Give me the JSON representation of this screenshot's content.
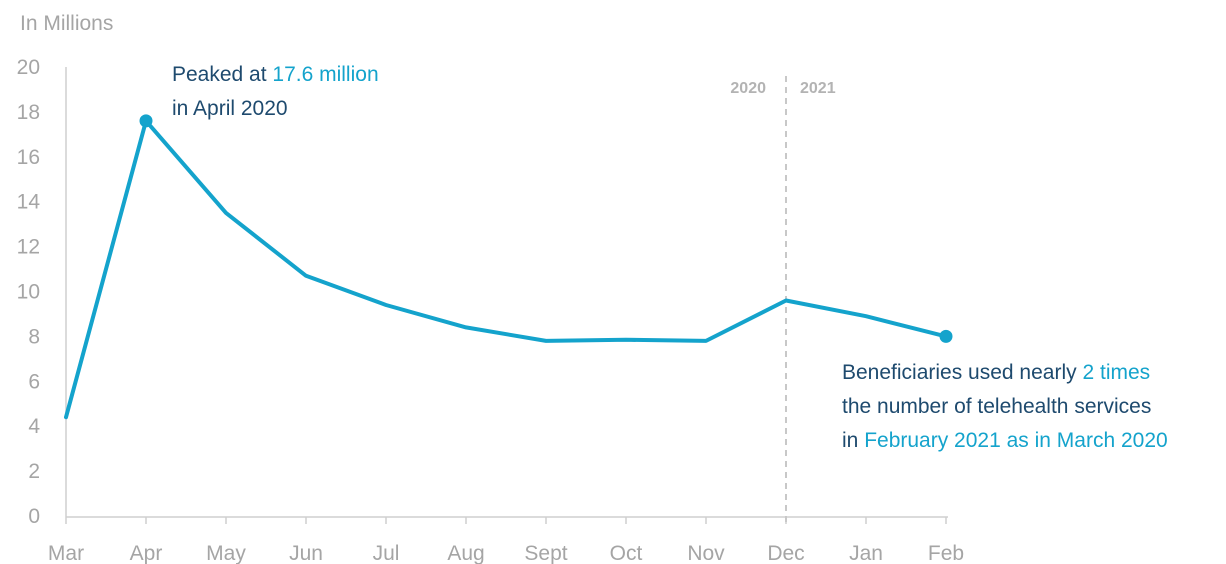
{
  "chart_data": {
    "type": "line",
    "unit_label": "In Millions",
    "categories": [
      "Mar",
      "Apr",
      "May",
      "Jun",
      "Jul",
      "Aug",
      "Sept",
      "Oct",
      "Nov",
      "Dec",
      "Jan",
      "Feb"
    ],
    "series": [
      {
        "values": [
          4.4,
          17.6,
          13.5,
          10.7,
          9.4,
          8.4,
          7.8,
          7.85,
          7.8,
          9.6,
          8.9,
          8.0
        ]
      }
    ],
    "ylim": [
      0,
      20
    ],
    "yticks": [
      0,
      2,
      4,
      6,
      8,
      10,
      12,
      14,
      16,
      18,
      20
    ],
    "grid": false,
    "year_divider": {
      "after_category": "Dec",
      "left_label": "2020",
      "right_label": "2021"
    },
    "colors": {
      "line": "#14a3cc",
      "text": "#1e4a6e",
      "highlight": "#14a3cc",
      "axis": "#cfcfcf",
      "tick": "#a5a5a5",
      "divider": "#c8c8c8"
    },
    "annotations": {
      "peak": {
        "line1_pre": "Peaked at ",
        "line1_hl": "17.6 million",
        "line2": "in April 2020"
      },
      "end": {
        "line1_pre": "Beneficiaries used nearly ",
        "line1_hl": "2 times",
        "line2": "the number of telehealth services",
        "line3_pre": "in ",
        "line3_hl": "February 2021 as in March 2020"
      }
    }
  }
}
